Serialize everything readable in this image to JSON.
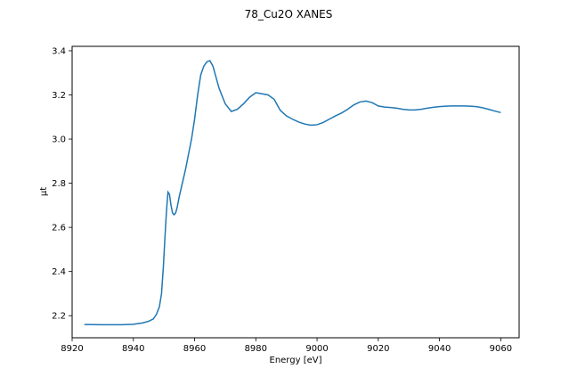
{
  "chart_data": {
    "type": "line",
    "title": "78_Cu2O XANES",
    "xlabel": "Energy [eV]",
    "ylabel": "μt",
    "xlim": [
      8920,
      9066
    ],
    "ylim": [
      2.1,
      3.42
    ],
    "xticks": [
      8920,
      8940,
      8960,
      8980,
      9000,
      9020,
      9040,
      9060
    ],
    "yticks": [
      2.2,
      2.4,
      2.6,
      2.8,
      3.0,
      3.2,
      3.4
    ],
    "ytick_labels": [
      "2.2",
      "2.4",
      "2.6",
      "2.8",
      "3.0",
      "3.2",
      "3.4"
    ],
    "grid": false,
    "series": [
      {
        "color": "#1f77b4",
        "x": [
          8924,
          8930,
          8936,
          8940,
          8943,
          8945,
          8946.5,
          8947.5,
          8948.5,
          8949.2,
          8949.8,
          8950.3,
          8950.8,
          8951.3,
          8951.8,
          8952.3,
          8952.8,
          8953.3,
          8953.8,
          8954.3,
          8955,
          8956,
          8957,
          8958,
          8959,
          8960,
          8961,
          8962,
          8963,
          8964,
          8965,
          8966,
          8967,
          8968,
          8970,
          8972,
          8974,
          8976,
          8978,
          8980,
          8982,
          8984,
          8986,
          8988,
          8990,
          8992,
          8994,
          8996,
          8998,
          9000,
          9002,
          9004,
          9006,
          9008,
          9010,
          9012,
          9014,
          9016,
          9018,
          9020,
          9022,
          9024,
          9026,
          9028,
          9030,
          9032,
          9034,
          9036,
          9038,
          9040,
          9042,
          9044,
          9046,
          9048,
          9050,
          9052,
          9054,
          9056,
          9058,
          9060
        ],
        "y": [
          2.16,
          2.159,
          2.159,
          2.161,
          2.167,
          2.175,
          2.185,
          2.205,
          2.24,
          2.3,
          2.42,
          2.55,
          2.67,
          2.76,
          2.75,
          2.7,
          2.665,
          2.657,
          2.665,
          2.69,
          2.74,
          2.8,
          2.86,
          2.93,
          3.0,
          3.09,
          3.2,
          3.29,
          3.33,
          3.35,
          3.355,
          3.33,
          3.28,
          3.23,
          3.16,
          3.125,
          3.135,
          3.16,
          3.19,
          3.21,
          3.205,
          3.2,
          3.18,
          3.13,
          3.105,
          3.09,
          3.077,
          3.068,
          3.063,
          3.065,
          3.075,
          3.09,
          3.105,
          3.118,
          3.135,
          3.155,
          3.168,
          3.172,
          3.165,
          3.15,
          3.145,
          3.143,
          3.14,
          3.135,
          3.132,
          3.132,
          3.135,
          3.14,
          3.144,
          3.147,
          3.149,
          3.15,
          3.15,
          3.15,
          3.149,
          3.147,
          3.142,
          3.135,
          3.127,
          3.12
        ]
      }
    ]
  }
}
